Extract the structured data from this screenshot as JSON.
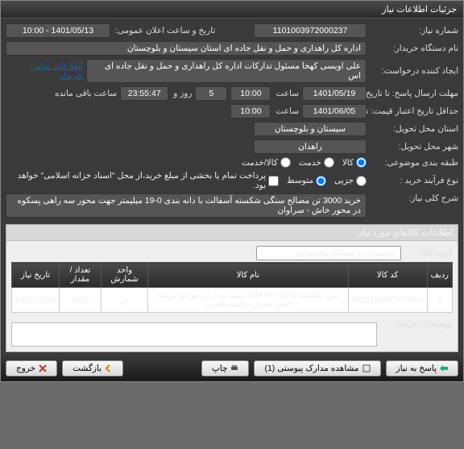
{
  "panel_title": "جزئیات اطلاعات نیاز",
  "fields": {
    "need_number_label": "شماره نیاز:",
    "need_number": "1101003972000237",
    "announce_label": "تاریخ و ساعت اعلان عمومی:",
    "announce": "1401/05/13 - 10:00",
    "buyer_org_label": "نام دستگاه خریدار:",
    "buyer_org": "اداره کل راهداری و حمل و نقل جاده ای استان سیستان و بلوچستان",
    "requester_label": "ایجاد کننده درخواست:",
    "requester": "علی اویسی کهخا مسئول تدارکات اداره کل راهداری و حمل و نقل جاده ای اس",
    "contact_link": "اطلاعات تماس خریدار",
    "response_deadline_label": "مهلت ارسال پاسخ: تا تاریخ:",
    "response_date": "1401/05/19",
    "time_label": "ساعت",
    "response_time": "10:00",
    "days": "5",
    "days_label": "روز و",
    "remaining_time": "23:55:47",
    "remaining_label": "ساعت باقی مانده",
    "validity_label": "حداقل تاریخ اعتبار قیمت: تا تاریخ:",
    "validity_date": "1401/06/05",
    "validity_time": "10:00",
    "province_label": "استان محل تحویل:",
    "province": "سیستان و بلوچستان",
    "city_label": "شهر محل تحویل:",
    "city": "راهدان",
    "category_label": "طبقه بندی موضوعی:",
    "cat_goods": "کالا",
    "cat_service": "خدمت",
    "cat_both": "کالا/خدمت",
    "purchase_type_label": "نوع فرآیند خرید :",
    "pt_small": "جزیی",
    "pt_medium": "متوسط",
    "pt_note": "پرداخت تمام یا بخشی از مبلغ خرید،از محل \"اسناد خزانه اسلامی\" خواهد بود.",
    "need_desc_label": "شرح کلی نیاز:",
    "need_desc": "خرید 3000 تن مصالح سنگی شکسته آسفالت با دانه بندی 0-19 میلیمتر جهت محور سه راهی پسکوه در محور خاش - سراوان"
  },
  "items_section_title": "اطلاعات کالاهای مورد نیاز",
  "group_label": "گروه کالا:",
  "group_value": "تاسیسات و مصالح ساختمانی",
  "table": {
    "columns": [
      "ردیف",
      "کد کالا",
      "نام کالا",
      "واحد شمارش",
      "تعداد / مقدار",
      "تاریخ نیاز"
    ],
    "rows": [
      [
        "1",
        "0933120887470004",
        "شن شکسته 0-19 mm فاقد بسته بندی تن-مرجع عرضه کننده شیراز ترانشه فارس",
        "تن",
        "3000",
        "1401/05/30"
      ]
    ]
  },
  "buyer_notes_label": "توضیحات خریدار:",
  "buttons": {
    "respond": "پاسخ به نیاز",
    "attachments": "مشاهده مدارک پیوستی (1)",
    "print": "چاپ",
    "back": "بازگشت",
    "exit": "خروج"
  },
  "colors": {
    "header_bg": "#3a3a3a",
    "body_bg": "#e8e8e8",
    "dark_val": "#555555"
  }
}
